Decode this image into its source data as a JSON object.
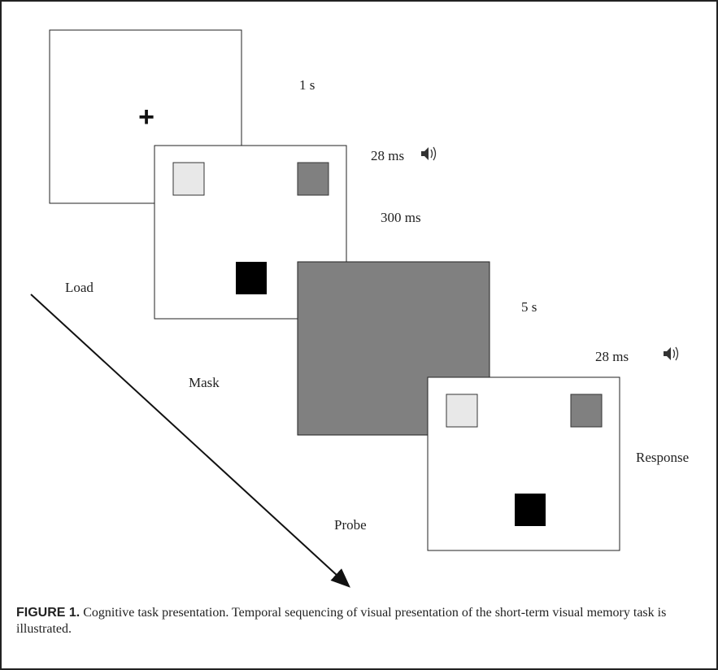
{
  "timings": [
    "1 s",
    "28 ms",
    "300 ms",
    "5 s",
    "28 ms"
  ],
  "stages": [
    "Load",
    "Mask",
    "Probe",
    "Response"
  ],
  "caption": {
    "label": "FIGURE 1.",
    "text": "Cognitive task presentation. Temporal sequencing of visual presentation of the short-term visual memory task is illustrated."
  },
  "fixation": "+"
}
